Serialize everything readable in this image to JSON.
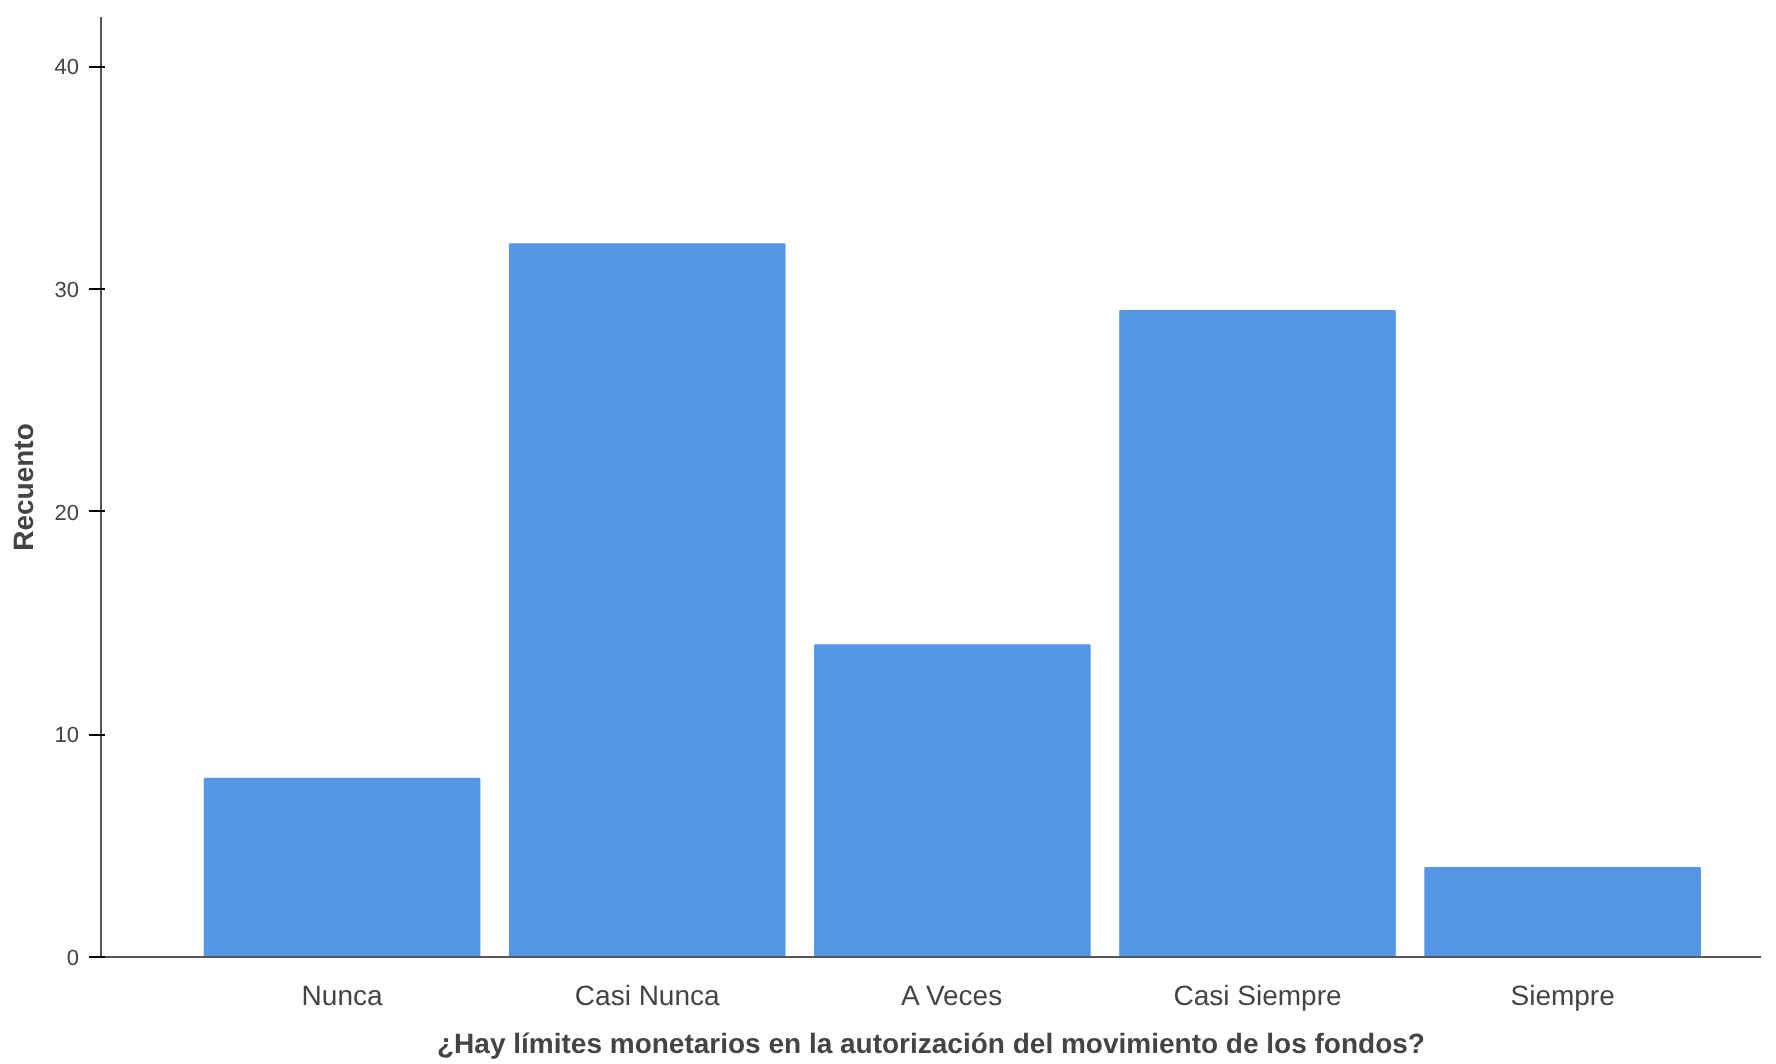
{
  "chart_data": {
    "type": "bar",
    "xlabel": "¿Hay límites monetarios en la autorización del movimiento de los fondos?",
    "ylabel": "Recuento",
    "categories": [
      "Nunca",
      "Casi Nunca",
      "A Veces",
      "Casi Siempre",
      "Siempre"
    ],
    "values": [
      8,
      32,
      14,
      29,
      4
    ],
    "color": "#5596e6",
    "ylim": [
      0,
      42.2
    ],
    "yticks": [
      0,
      10,
      20,
      30,
      40
    ],
    "grid": false
  }
}
